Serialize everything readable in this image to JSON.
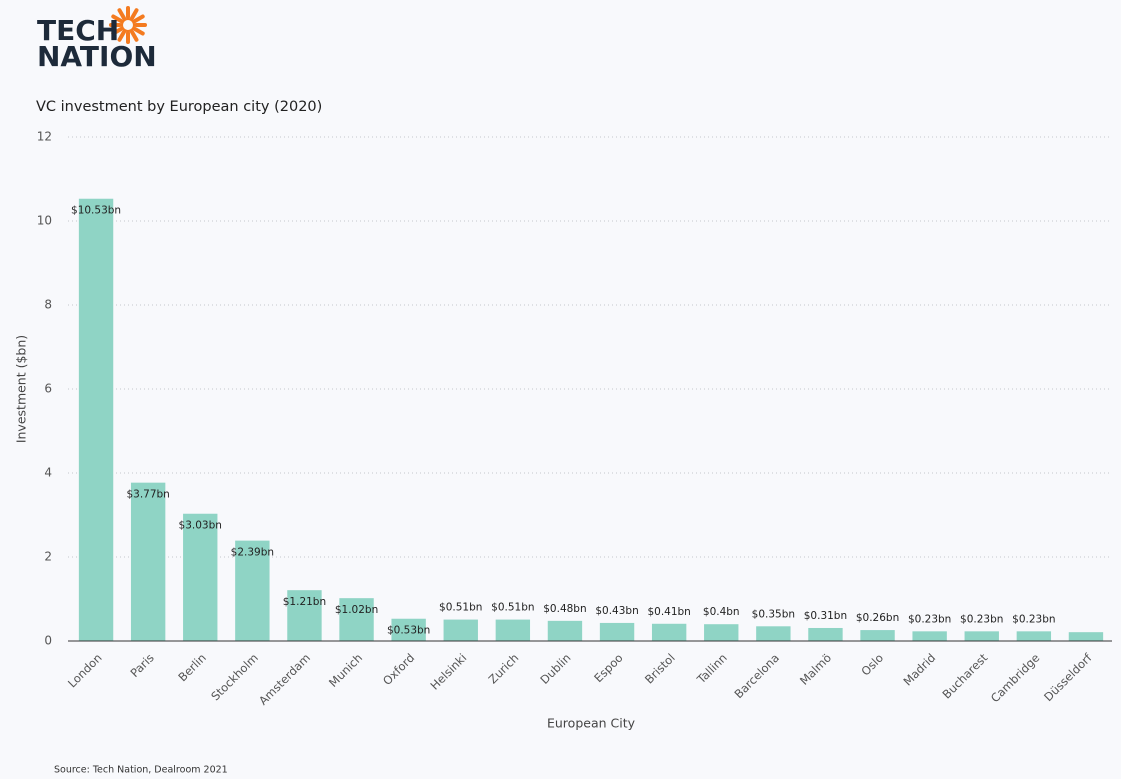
{
  "logo": {
    "line1": "TECH",
    "line2": "NATION"
  },
  "chart_data": {
    "type": "bar",
    "title": "VC investment by European city (2020)",
    "x_label": "European City",
    "y_label": "Investment ($bn)",
    "categories": [
      "London",
      "Paris",
      "Berlin",
      "Stockholm",
      "Amsterdam",
      "Munich",
      "Oxford",
      "Helsinki",
      "Zurich",
      "Dublin",
      "Espoo",
      "Bristol",
      "Tallinn",
      "Barcelona",
      "Malmö",
      "Oslo",
      "Madrid",
      "Bucharest",
      "Cambridge",
      "Düsseldorf"
    ],
    "values": [
      10.53,
      3.77,
      3.03,
      2.39,
      1.21,
      1.02,
      0.53,
      0.51,
      0.51,
      0.48,
      0.43,
      0.41,
      0.4,
      0.35,
      0.31,
      0.26,
      0.23,
      0.23,
      0.23,
      0.21
    ],
    "value_labels": [
      "$10.53bn",
      "$3.77bn",
      "$3.03bn",
      "$2.39bn",
      "$1.21bn",
      "$1.02bn",
      "$0.53bn",
      "$0.51bn",
      "$0.51bn",
      "$0.48bn",
      "$0.43bn",
      "$0.41bn",
      "$0.4bn",
      "$0.35bn",
      "$0.31bn",
      "$0.26bn",
      "$0.23bn",
      "$0.23bn",
      "$0.23bn",
      null
    ],
    "color": "#8fd4c5",
    "ylim": [
      0,
      12
    ],
    "yticks": [
      0,
      2,
      4,
      6,
      8,
      10,
      12
    ],
    "grid": true,
    "source": "Source: Tech Nation, Dealroom 2021"
  }
}
